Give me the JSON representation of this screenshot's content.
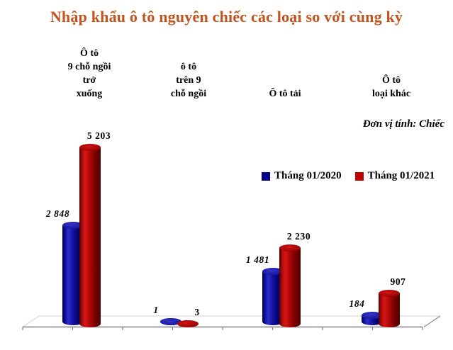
{
  "header": {
    "title": "Nhập khẩu ô tô nguyên chiếc các loại so với cùng kỳ"
  },
  "unit_note": "Đơn vị tính: Chiếc",
  "legend": {
    "items": [
      {
        "label": "Tháng 01/2020",
        "color": "#00008B"
      },
      {
        "label": "Tháng 01/2021",
        "color": "#C00000"
      }
    ]
  },
  "chart_data": {
    "type": "bar",
    "subtype": "3d-cylinder",
    "title": "Nhập khẩu ô tô nguyên chiếc các loại so với cùng kỳ",
    "unit": "Chiếc",
    "categories": [
      "Ô tô\n9 chỗ ngồi\ntrở\nxuống",
      "ô tô\ntrên 9\nchỗ ngồi",
      "Ô tô tải",
      "Ô tô\nloại khác"
    ],
    "series": [
      {
        "name": "Tháng 01/2020",
        "color": "#00008B",
        "values": [
          2848,
          1,
          1481,
          184
        ],
        "value_labels": [
          "2 848",
          "1",
          "1 481",
          "184"
        ]
      },
      {
        "name": "Tháng 01/2021",
        "color": "#C00000",
        "values": [
          5203,
          3,
          2230,
          907
        ],
        "value_labels": [
          "5 203",
          "3",
          "2 230",
          "907"
        ]
      }
    ],
    "value_axis_visible": false,
    "gridlines": false,
    "legend_position": "middle-right",
    "ylim": [
      0,
      5500
    ]
  },
  "colors": {
    "title": "#C1531C",
    "axis": "#808080",
    "floor_edge": "#D9D9D9",
    "floor_diag_right": "#8C8C8C"
  }
}
